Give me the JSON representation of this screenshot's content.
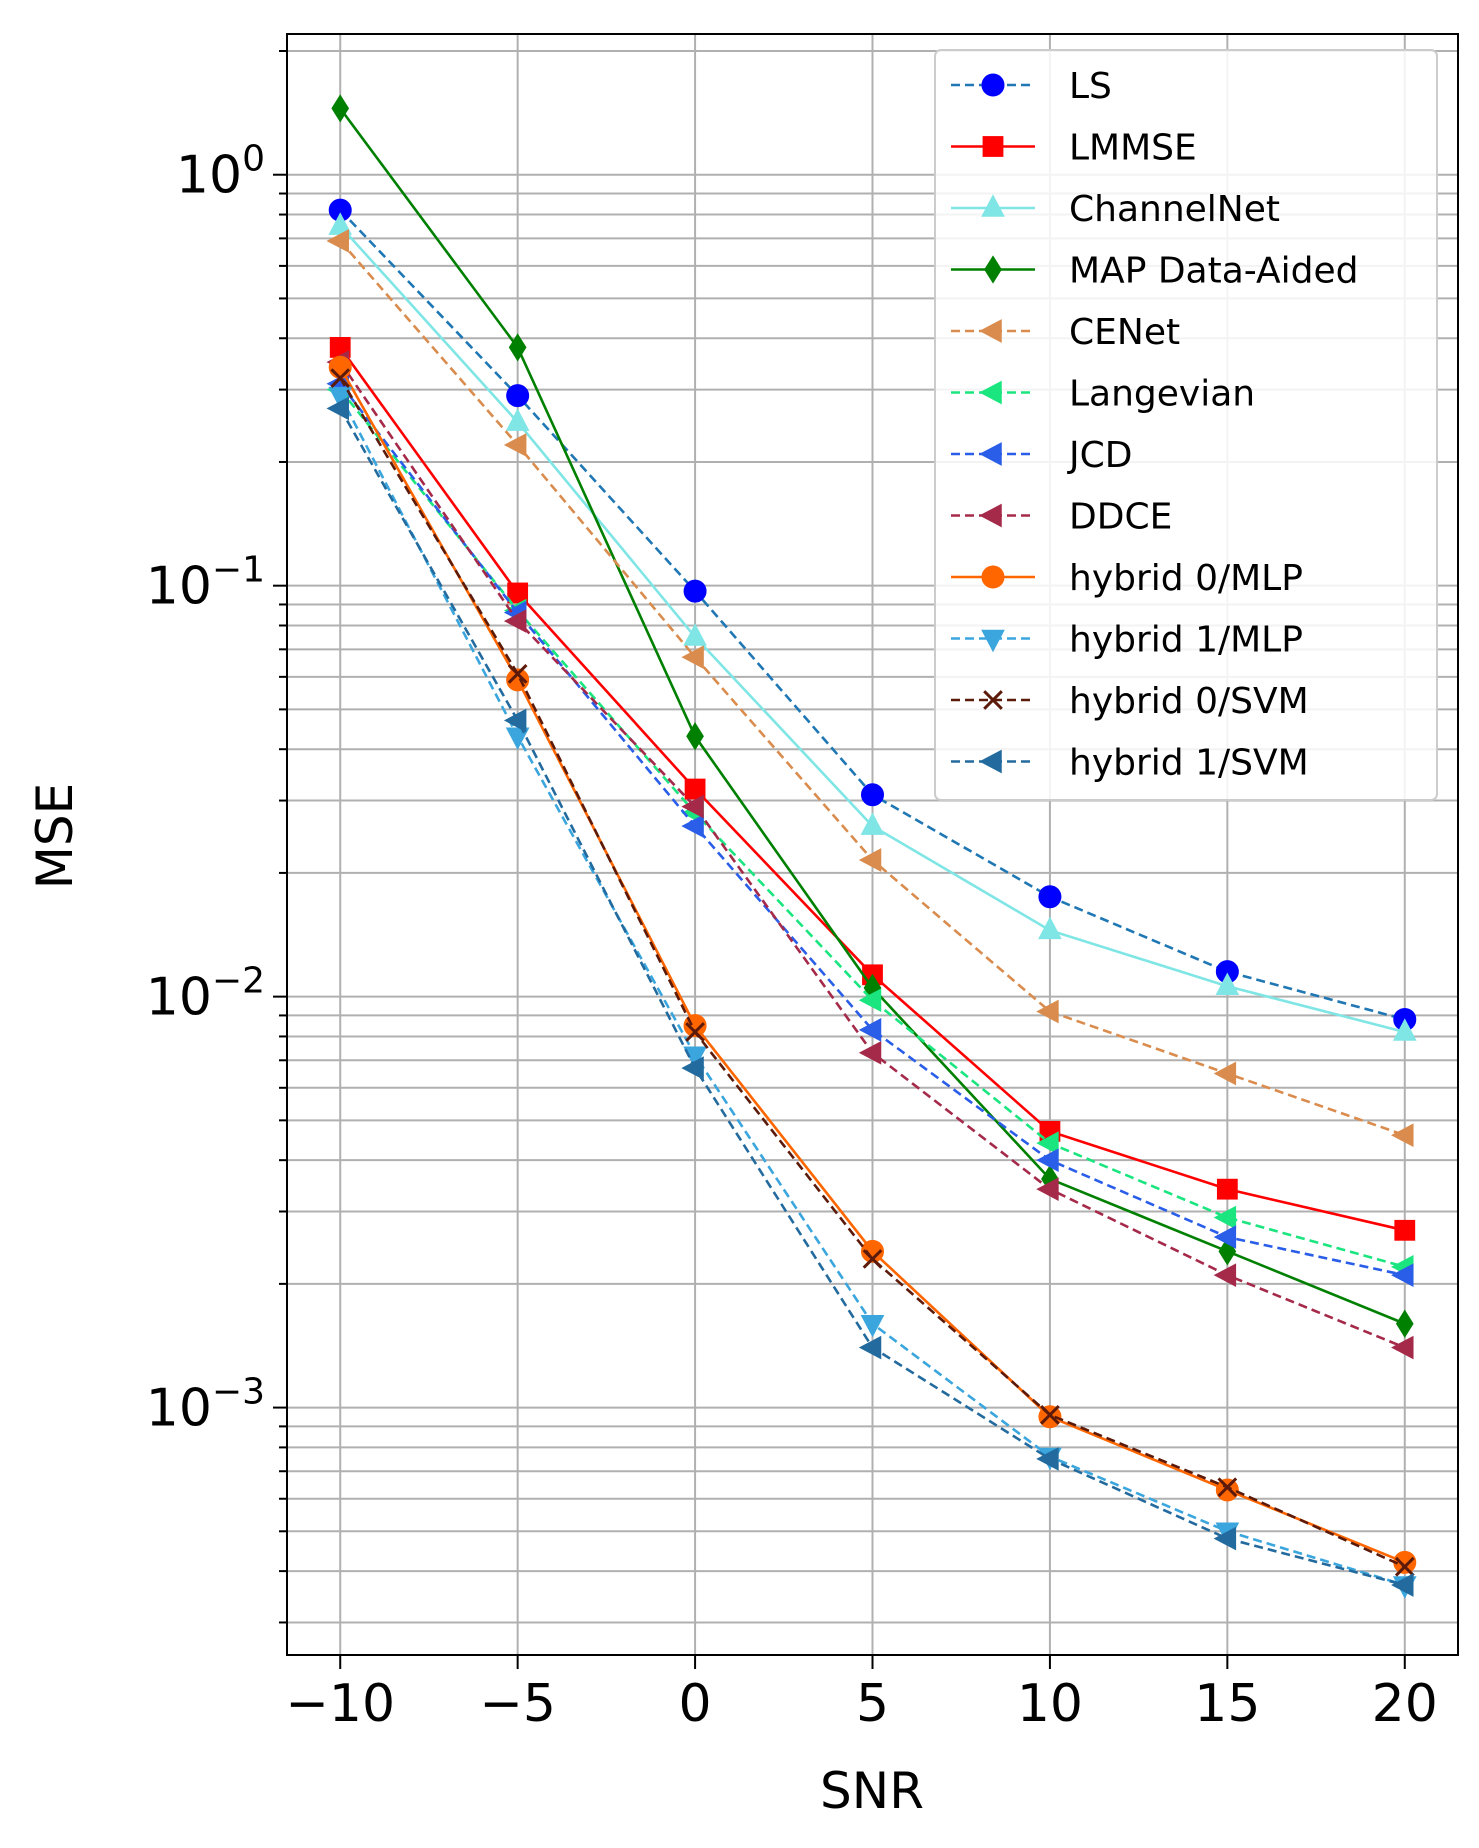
{
  "chart_data": {
    "type": "line",
    "title": "",
    "xlabel": "SNR",
    "ylabel": "MSE",
    "x": [
      -10,
      -5,
      0,
      5,
      10,
      15,
      20
    ],
    "xlim": [
      -11.5,
      21.5
    ],
    "ylim": [
      0.00025,
      2.2
    ],
    "yscale": "log",
    "grid": true,
    "grid_minor": true,
    "legend_position": "top-right",
    "xticks": [
      {
        "value": -10,
        "label": "−10"
      },
      {
        "value": -5,
        "label": "−5"
      },
      {
        "value": 0,
        "label": "0"
      },
      {
        "value": 5,
        "label": "5"
      },
      {
        "value": 10,
        "label": "10"
      },
      {
        "value": 15,
        "label": "15"
      },
      {
        "value": 20,
        "label": "20"
      }
    ],
    "yticks": [
      {
        "value": 1,
        "base": "10",
        "exp": "0"
      },
      {
        "value": 0.1,
        "base": "10",
        "exp": "−1"
      },
      {
        "value": 0.01,
        "base": "10",
        "exp": "−2"
      },
      {
        "value": 0.001,
        "base": "10",
        "exp": "−3"
      }
    ],
    "series": [
      {
        "name": "LS",
        "values": [
          0.82,
          0.29,
          0.097,
          0.031,
          0.0175,
          0.0115,
          0.0088
        ],
        "color": "#1f77b4",
        "marker_color": "#0000ff",
        "dash": "dashed",
        "marker": "circle"
      },
      {
        "name": "LMMSE",
        "values": [
          0.38,
          0.096,
          0.032,
          0.0113,
          0.0047,
          0.0034,
          0.0027
        ],
        "color": "#ff0000",
        "marker_color": "#ff0000",
        "dash": "solid",
        "marker": "square"
      },
      {
        "name": "ChannelNet",
        "values": [
          0.75,
          0.25,
          0.075,
          0.026,
          0.0145,
          0.0106,
          0.0082
        ],
        "color": "#7fe5e5",
        "marker_color": "#7fe5e5",
        "dash": "solid",
        "marker": "triangle-up"
      },
      {
        "name": "MAP Data-Aided",
        "values": [
          1.45,
          0.38,
          0.043,
          0.0105,
          0.0036,
          0.0024,
          0.0016
        ],
        "color": "#008000",
        "marker_color": "#008000",
        "dash": "solid",
        "marker": "diamond"
      },
      {
        "name": "CENet",
        "values": [
          0.69,
          0.22,
          0.067,
          0.0215,
          0.0092,
          0.0065,
          0.0046
        ],
        "color": "#d98c4d",
        "marker_color": "#d98c4d",
        "dash": "dashed",
        "marker": "triangle-left"
      },
      {
        "name": "Langevian",
        "values": [
          0.3,
          0.087,
          0.028,
          0.0098,
          0.0044,
          0.0029,
          0.0022
        ],
        "color": "#1ae57f",
        "marker_color": "#1ae57f",
        "dash": "dashed",
        "marker": "triangle-left"
      },
      {
        "name": "JCD",
        "values": [
          0.31,
          0.086,
          0.026,
          0.0083,
          0.004,
          0.0026,
          0.0021
        ],
        "color": "#2a5ee8",
        "marker_color": "#2a5ee8",
        "dash": "dashed",
        "marker": "triangle-left"
      },
      {
        "name": "DDCE",
        "values": [
          0.35,
          0.082,
          0.029,
          0.0073,
          0.0034,
          0.0021,
          0.0014
        ],
        "color": "#a52a4a",
        "marker_color": "#a52a4a",
        "dash": "dashed",
        "marker": "triangle-left"
      },
      {
        "name": "hybrid 0/MLP",
        "values": [
          0.34,
          0.059,
          0.0085,
          0.0024,
          0.00095,
          0.00063,
          0.00042
        ],
        "color": "#ff6600",
        "marker_color": "#ff6600",
        "dash": "solid",
        "marker": "circle"
      },
      {
        "name": "hybrid 1/MLP",
        "values": [
          0.29,
          0.043,
          0.0072,
          0.0016,
          0.00076,
          0.0005,
          0.00037
        ],
        "color": "#3aa6dd",
        "marker_color": "#3aa6dd",
        "dash": "dashed",
        "marker": "triangle-down"
      },
      {
        "name": "hybrid 0/SVM",
        "values": [
          0.32,
          0.061,
          0.0082,
          0.0023,
          0.00096,
          0.00064,
          0.00041
        ],
        "color": "#5c1a0a",
        "marker_color": "#5c1a0a",
        "dash": "dashed",
        "marker": "x"
      },
      {
        "name": "hybrid 1/SVM",
        "values": [
          0.27,
          0.047,
          0.0067,
          0.0014,
          0.00075,
          0.00048,
          0.00037
        ],
        "color": "#236b9e",
        "marker_color": "#236b9e",
        "dash": "dashed",
        "marker": "triangle-left"
      }
    ]
  }
}
